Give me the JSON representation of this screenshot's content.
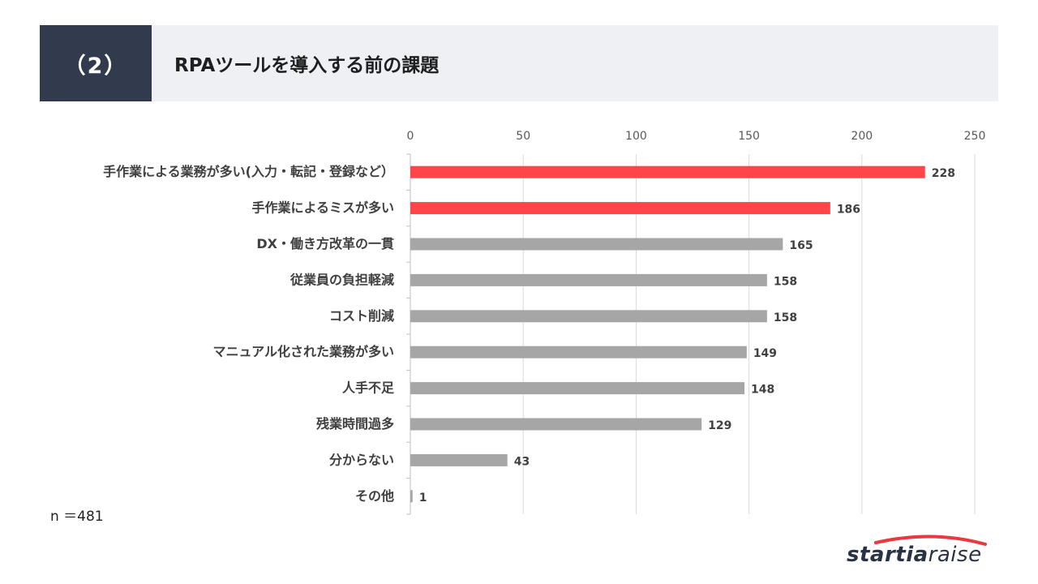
{
  "header": {
    "number": "（2）",
    "title": "RPAツールを導入する前の課題"
  },
  "sample_note": "n ＝481",
  "logo": {
    "bold_text": "startia",
    "light_text": "raise"
  },
  "colors": {
    "highlight": "#ff444a",
    "normal": "#a6a6a6",
    "header_dark": "#323b4e",
    "header_light": "#eff0f3"
  },
  "chart_data": {
    "type": "bar",
    "orientation": "horizontal",
    "categories": [
      "手作業による業務が多い(入力・転記・登録など）",
      "手作業によるミスが多い",
      "DX・働き方改革の一貫",
      "従業員の負担軽減",
      "コスト削減",
      "マニュアル化された業務が多い",
      "人手不足",
      "残業時間過多",
      "分からない",
      "その他"
    ],
    "values": [
      228,
      186,
      165,
      158,
      158,
      149,
      148,
      129,
      43,
      1
    ],
    "highlighted": [
      true,
      true,
      false,
      false,
      false,
      false,
      false,
      false,
      false,
      false
    ],
    "xlim": [
      0,
      250
    ],
    "xticks": [
      0,
      50,
      100,
      150,
      200,
      250
    ],
    "axis_position": "top",
    "grid": true,
    "data_labels": true
  }
}
